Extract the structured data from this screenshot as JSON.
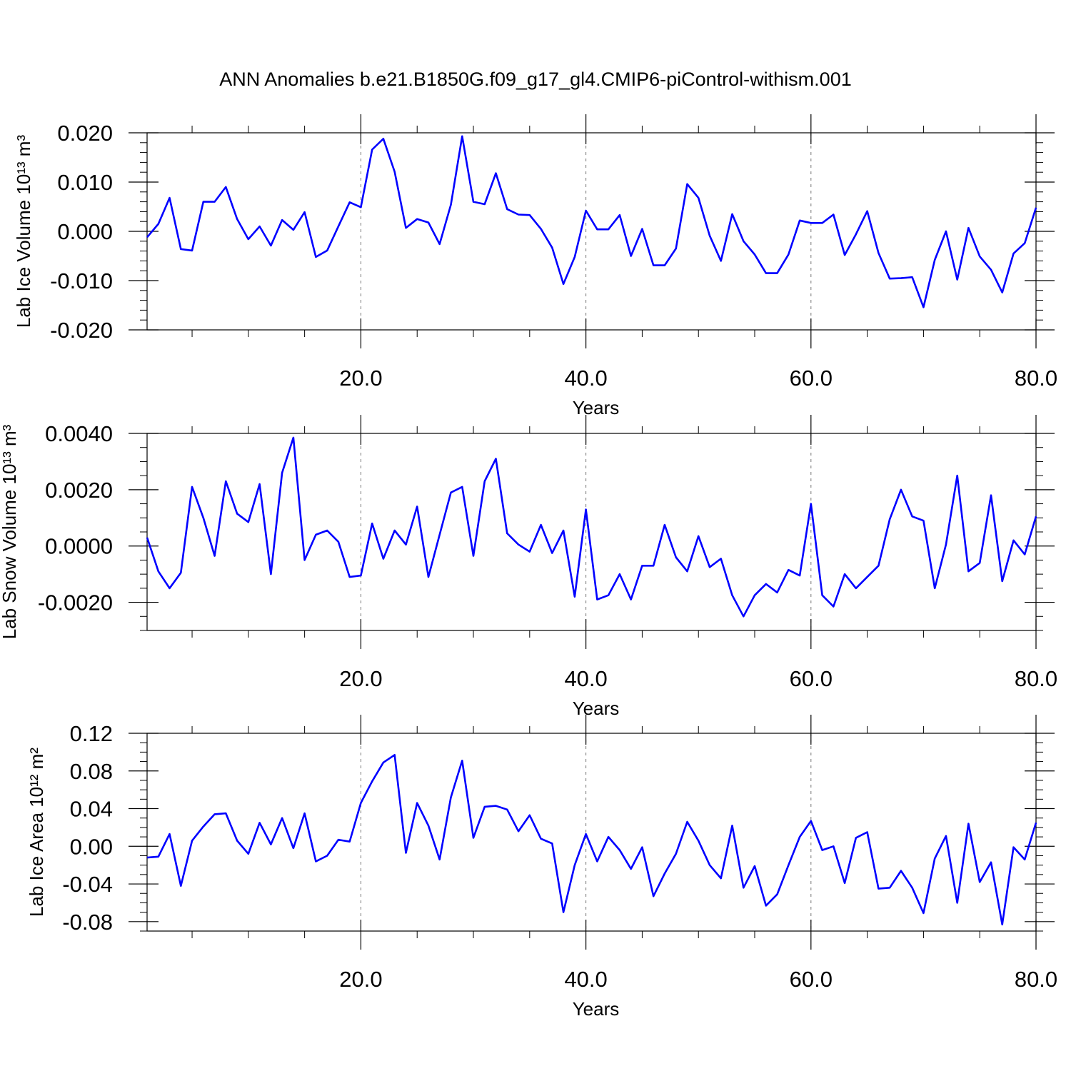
{
  "title": "ANN Anomalies b.e21.B1850G.f09_g17_gl4.CMIP6-piControl-withism.001",
  "colors": {
    "line": "#0000ff",
    "axis": "#000000",
    "grid": "#777777"
  },
  "chart_data": [
    {
      "type": "line",
      "ylabel": "Lab Ice Volume 10¹³ m³",
      "xlabel": "Years",
      "xlim": [
        1,
        80
      ],
      "ylim": [
        -0.02,
        0.02
      ],
      "x_ticks": [
        20,
        40,
        60,
        80
      ],
      "x_tick_labels": [
        "20.0",
        "40.0",
        "60.0",
        "80.0"
      ],
      "y_ticks": [
        -0.02,
        -0.01,
        0,
        0.01,
        0.02
      ],
      "y_tick_labels": [
        "-0.020",
        "-0.010",
        "0.000",
        "0.010",
        "0.020"
      ],
      "y_minor_step": 0.002,
      "grid": "dashed vertical at 20, 40, 60",
      "x": [
        1,
        2,
        3,
        4,
        5,
        6,
        7,
        8,
        9,
        10,
        11,
        12,
        13,
        14,
        15,
        16,
        17,
        18,
        19,
        20,
        21,
        22,
        23,
        24,
        25,
        26,
        27,
        28,
        29,
        30,
        31,
        32,
        33,
        34,
        35,
        36,
        37,
        38,
        39,
        40,
        41,
        42,
        43,
        44,
        45,
        46,
        47,
        48,
        49,
        50,
        51,
        52,
        53,
        54,
        55,
        56,
        57,
        58,
        59,
        60,
        61,
        62,
        63,
        64,
        65,
        66,
        67,
        68,
        69,
        70,
        71,
        72,
        73,
        74,
        75,
        76,
        77,
        78,
        79,
        80
      ],
      "values": [
        -0.0012,
        0.0015,
        0.0068,
        -0.0036,
        -0.0039,
        0.006,
        0.006,
        0.009,
        0.0025,
        -0.0016,
        0.001,
        -0.0029,
        0.0023,
        0.0003,
        0.0039,
        -0.0052,
        -0.0039,
        0.001,
        0.0059,
        0.0049,
        0.0166,
        0.0188,
        0.0121,
        0.0007,
        0.0025,
        0.0018,
        -0.0026,
        0.0054,
        0.0193,
        0.006,
        0.0055,
        0.0118,
        0.0045,
        0.0034,
        0.0033,
        0.0005,
        -0.0033,
        -0.0107,
        -0.0052,
        0.0042,
        0.0004,
        0.0004,
        0.0033,
        -0.005,
        0.0005,
        -0.0069,
        -0.0069,
        -0.0035,
        0.0096,
        0.0068,
        -0.0009,
        -0.006,
        0.0035,
        -0.002,
        -0.0047,
        -0.0085,
        -0.0085,
        -0.0047,
        0.0022,
        0.0017,
        0.0017,
        0.0034,
        -0.0048,
        -0.0006,
        0.0041,
        -0.0044,
        -0.0096,
        -0.0095,
        -0.0093,
        -0.0154,
        -0.0058,
        0,
        -0.0098,
        0.0007,
        -0.0051,
        -0.0078,
        -0.0124,
        -0.0045,
        -0.0024,
        0.0048
      ]
    },
    {
      "type": "line",
      "ylabel": "Lab Snow Volume 10¹³ m³",
      "xlabel": "Years",
      "xlim": [
        1,
        80
      ],
      "ylim": [
        -0.003,
        0.004
      ],
      "x_ticks": [
        20,
        40,
        60,
        80
      ],
      "x_tick_labels": [
        "20.0",
        "40.0",
        "60.0",
        "80.0"
      ],
      "y_ticks": [
        -0.002,
        0,
        0.002,
        0.004
      ],
      "y_tick_labels": [
        "-0.0020",
        "0.0000",
        "0.0020",
        "0.0040"
      ],
      "y_minor_step": 0.0005,
      "grid": "dashed vertical at 20, 40, 60",
      "x": [
        1,
        2,
        3,
        4,
        5,
        6,
        7,
        8,
        9,
        10,
        11,
        12,
        13,
        14,
        15,
        16,
        17,
        18,
        19,
        20,
        21,
        22,
        23,
        24,
        25,
        26,
        27,
        28,
        29,
        30,
        31,
        32,
        33,
        34,
        35,
        36,
        37,
        38,
        39,
        40,
        41,
        42,
        43,
        44,
        45,
        46,
        47,
        48,
        49,
        50,
        51,
        52,
        53,
        54,
        55,
        56,
        57,
        58,
        59,
        60,
        61,
        62,
        63,
        64,
        65,
        66,
        67,
        68,
        69,
        70,
        71,
        72,
        73,
        74,
        75,
        76,
        77,
        78,
        79,
        80
      ],
      "values": [
        0.0003,
        -0.0009,
        -0.0015,
        -0.00095,
        0.0021,
        0.001,
        -0.00035,
        0.0023,
        0.00115,
        0.00085,
        0.0022,
        -0.001,
        0.0026,
        0.00385,
        -0.0005,
        0.0004,
        0.00055,
        0.00015,
        -0.0011,
        -0.00105,
        0.0008,
        -0.00045,
        0.00055,
        5e-05,
        0.0014,
        -0.0011,
        0.0004,
        0.0019,
        0.0021,
        -0.00035,
        0.0023,
        0.0031,
        0.00045,
        5e-05,
        -0.0002,
        0.00075,
        -0.00025,
        0.00055,
        -0.0018,
        0.0013,
        -0.0019,
        -0.00175,
        -0.001,
        -0.0019,
        -0.0007,
        -0.0007,
        0.00075,
        -0.0004,
        -0.0009,
        0.00035,
        -0.00075,
        -0.00045,
        -0.00175,
        -0.0025,
        -0.00175,
        -0.00135,
        -0.00165,
        -0.00085,
        -0.00105,
        0.0015,
        -0.00175,
        -0.00215,
        -0.001,
        -0.0015,
        -0.0011,
        -0.0007,
        0.00095,
        0.002,
        0.00105,
        0.0009,
        -0.0015,
        5e-05,
        0.0025,
        -0.0009,
        -0.0006,
        0.0018,
        -0.00125,
        0.0002,
        -0.0003,
        0.00105
      ]
    },
    {
      "type": "line",
      "ylabel": "Lab Ice Area 10¹² m²",
      "xlabel": "Years",
      "xlim": [
        1,
        80
      ],
      "ylim": [
        -0.09,
        0.12
      ],
      "x_ticks": [
        20,
        40,
        60,
        80
      ],
      "x_tick_labels": [
        "20.0",
        "40.0",
        "60.0",
        "80.0"
      ],
      "y_ticks": [
        -0.08,
        -0.04,
        0,
        0.04,
        0.08,
        0.12
      ],
      "y_tick_labels": [
        "-0.08",
        "-0.04",
        "0.00",
        "0.04",
        "0.08",
        "0.12"
      ],
      "y_minor_step": 0.01,
      "grid": "dashed vertical at 20, 40, 60",
      "x": [
        1,
        2,
        3,
        4,
        5,
        6,
        7,
        8,
        9,
        10,
        11,
        12,
        13,
        14,
        15,
        16,
        17,
        18,
        19,
        20,
        21,
        22,
        23,
        24,
        25,
        26,
        27,
        28,
        29,
        30,
        31,
        32,
        33,
        34,
        35,
        36,
        37,
        38,
        39,
        40,
        41,
        42,
        43,
        44,
        45,
        46,
        47,
        48,
        49,
        50,
        51,
        52,
        53,
        54,
        55,
        56,
        57,
        58,
        59,
        60,
        61,
        62,
        63,
        64,
        65,
        66,
        67,
        68,
        69,
        70,
        71,
        72,
        73,
        74,
        75,
        76,
        77,
        78,
        79,
        80
      ],
      "values": [
        -0.012,
        -0.011,
        0.013,
        -0.042,
        0.006,
        0.021,
        0.034,
        0.035,
        0.006,
        -0.008,
        0.025,
        0.002,
        0.03,
        -0.002,
        0.035,
        -0.016,
        -0.01,
        0.007,
        0.005,
        0.046,
        0.069,
        0.089,
        0.097,
        -0.007,
        0.046,
        0.022,
        -0.014,
        0.052,
        0.091,
        0.009,
        0.042,
        0.043,
        0.039,
        0.016,
        0.033,
        0.008,
        0.003,
        -0.07,
        -0.02,
        0.013,
        -0.016,
        0.01,
        -0.004,
        -0.024,
        -0.001,
        -0.053,
        -0.029,
        -0.008,
        0.026,
        0.006,
        -0.02,
        -0.034,
        0.022,
        -0.044,
        -0.021,
        -0.063,
        -0.051,
        -0.02,
        0.01,
        0.027,
        -0.004,
        0,
        -0.039,
        0.009,
        0.015,
        -0.045,
        -0.044,
        -0.026,
        -0.044,
        -0.071,
        -0.013,
        0.011,
        -0.06,
        0.024,
        -0.038,
        -0.017,
        -0.083,
        -0.001,
        -0.014,
        0.025
      ]
    }
  ]
}
